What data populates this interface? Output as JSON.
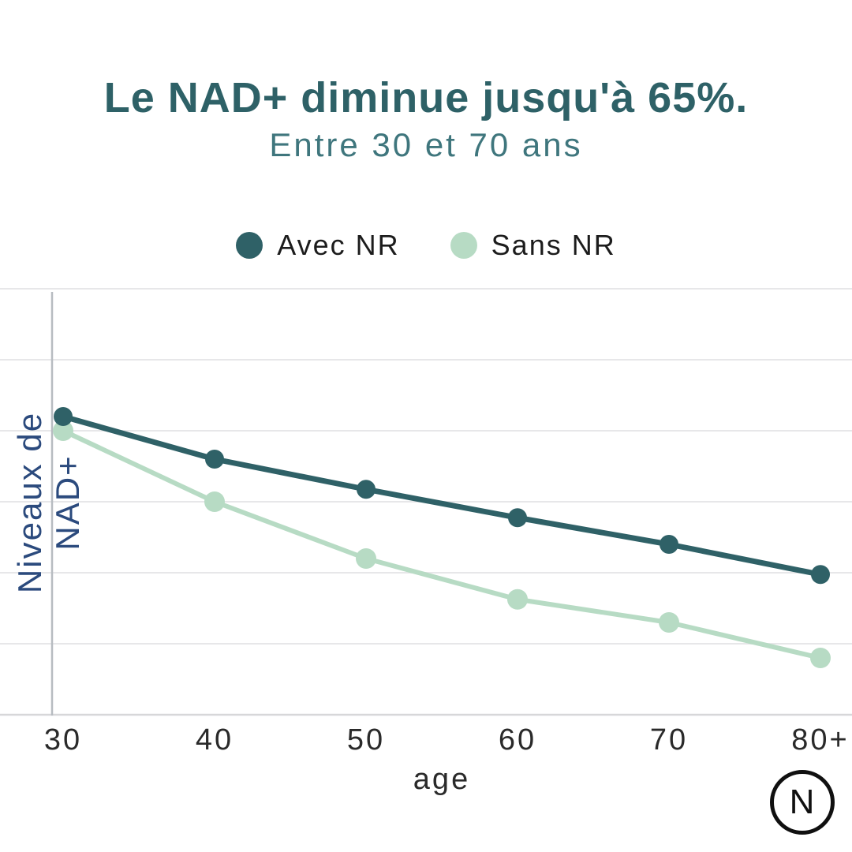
{
  "chart_data": {
    "type": "line",
    "title": "Le NAD+ diminue jusqu'à 65%.",
    "subtitle": "Entre 30 et 70 ans",
    "categories": [
      "30",
      "40",
      "50",
      "60",
      "70",
      "80+"
    ],
    "xlabel": "age",
    "ylabel": "Niveaux de NAD+",
    "ylabel_lines": [
      "Niveaux de",
      "NAD+"
    ],
    "ylim": [
      0,
      120
    ],
    "y_grid_step": 20,
    "y_tick_labels_visible": false,
    "grid": "horizontal",
    "legend_position": "top-center",
    "series": [
      {
        "name": "Avec NR",
        "color": "#2f6167",
        "values": [
          84,
          72,
          63.5,
          55.5,
          48,
          39.5
        ]
      },
      {
        "name": "Sans NR",
        "color": "#b7dbc4",
        "values": [
          80,
          60,
          44,
          32.5,
          26,
          16
        ]
      }
    ]
  },
  "colors": {
    "title_text": "#2e6167",
    "subtitle_text": "#3f767d",
    "legend_text": "#1c1c1c",
    "tick_text": "#2a2a2a",
    "y_axis_title_text": "#2b4a7d",
    "grid_line": "#e7e7e9",
    "x_axis_line": "#d7d7d9",
    "y_axis_line": "#b7bcc1",
    "logo": "#101010",
    "background": "#ffffff"
  },
  "logo": {
    "letter": "N"
  }
}
